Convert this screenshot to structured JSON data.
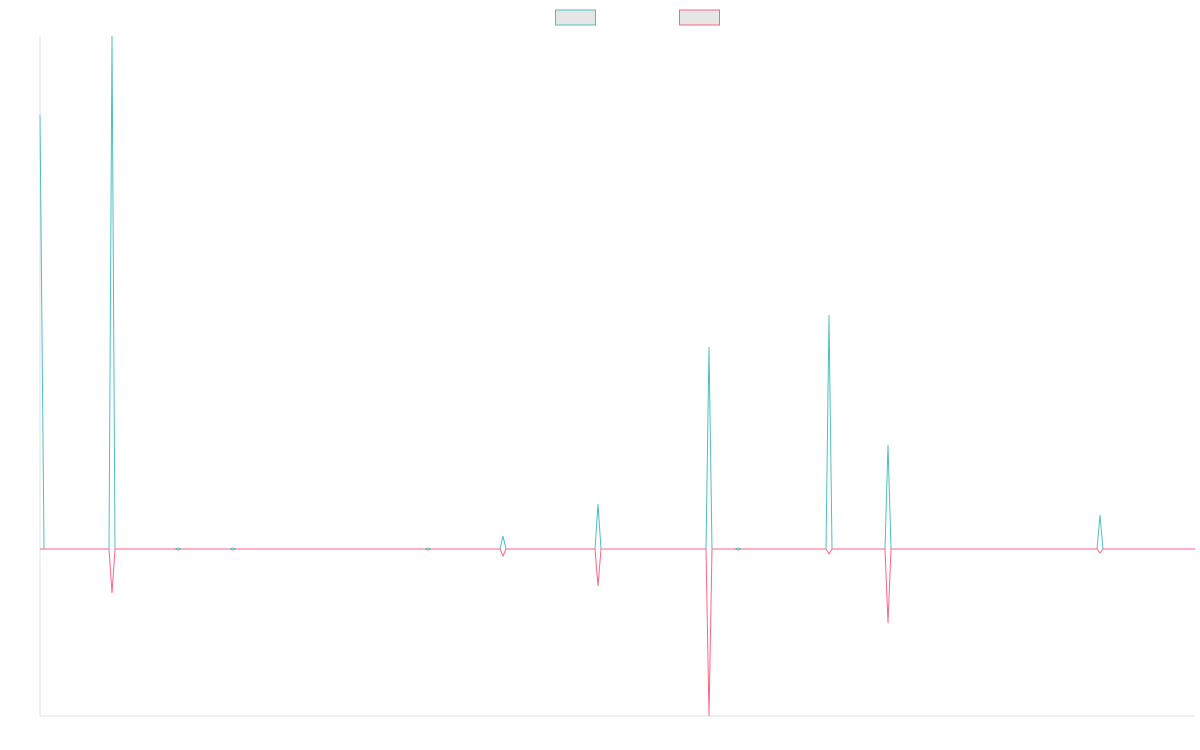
{
  "chart_data": {
    "type": "line",
    "x": [
      0,
      4,
      69,
      72,
      75,
      135,
      138,
      141,
      190,
      193,
      196,
      385,
      388,
      391,
      460,
      463,
      466,
      555,
      558,
      561,
      666,
      669,
      672,
      695,
      698,
      701,
      786,
      789,
      792,
      845,
      848,
      851,
      1057,
      1060,
      1063,
      1155
    ],
    "series": [
      {
        "color": "#4bc0c0",
        "values": [
          434,
          0,
          0,
          513,
          0,
          0,
          1,
          0,
          0,
          1,
          0,
          0,
          1,
          0,
          0,
          13,
          0,
          0,
          45,
          0,
          0,
          202,
          0,
          0,
          1,
          0,
          0,
          234,
          0,
          0,
          104,
          0,
          0,
          34,
          0,
          0
        ]
      },
      {
        "color": "#ff6384",
        "values": [
          0,
          0,
          0,
          -44,
          0,
          0,
          -1,
          0,
          0,
          -1,
          0,
          0,
          -1,
          0,
          0,
          -7,
          0,
          0,
          -37,
          0,
          0,
          -167,
          0,
          0,
          -1,
          0,
          0,
          -5,
          0,
          0,
          -74,
          0,
          0,
          -4,
          0,
          0
        ]
      }
    ],
    "xlim": [
      0,
      1155
    ],
    "ylim": [
      -167,
      513
    ],
    "legend": "top"
  }
}
